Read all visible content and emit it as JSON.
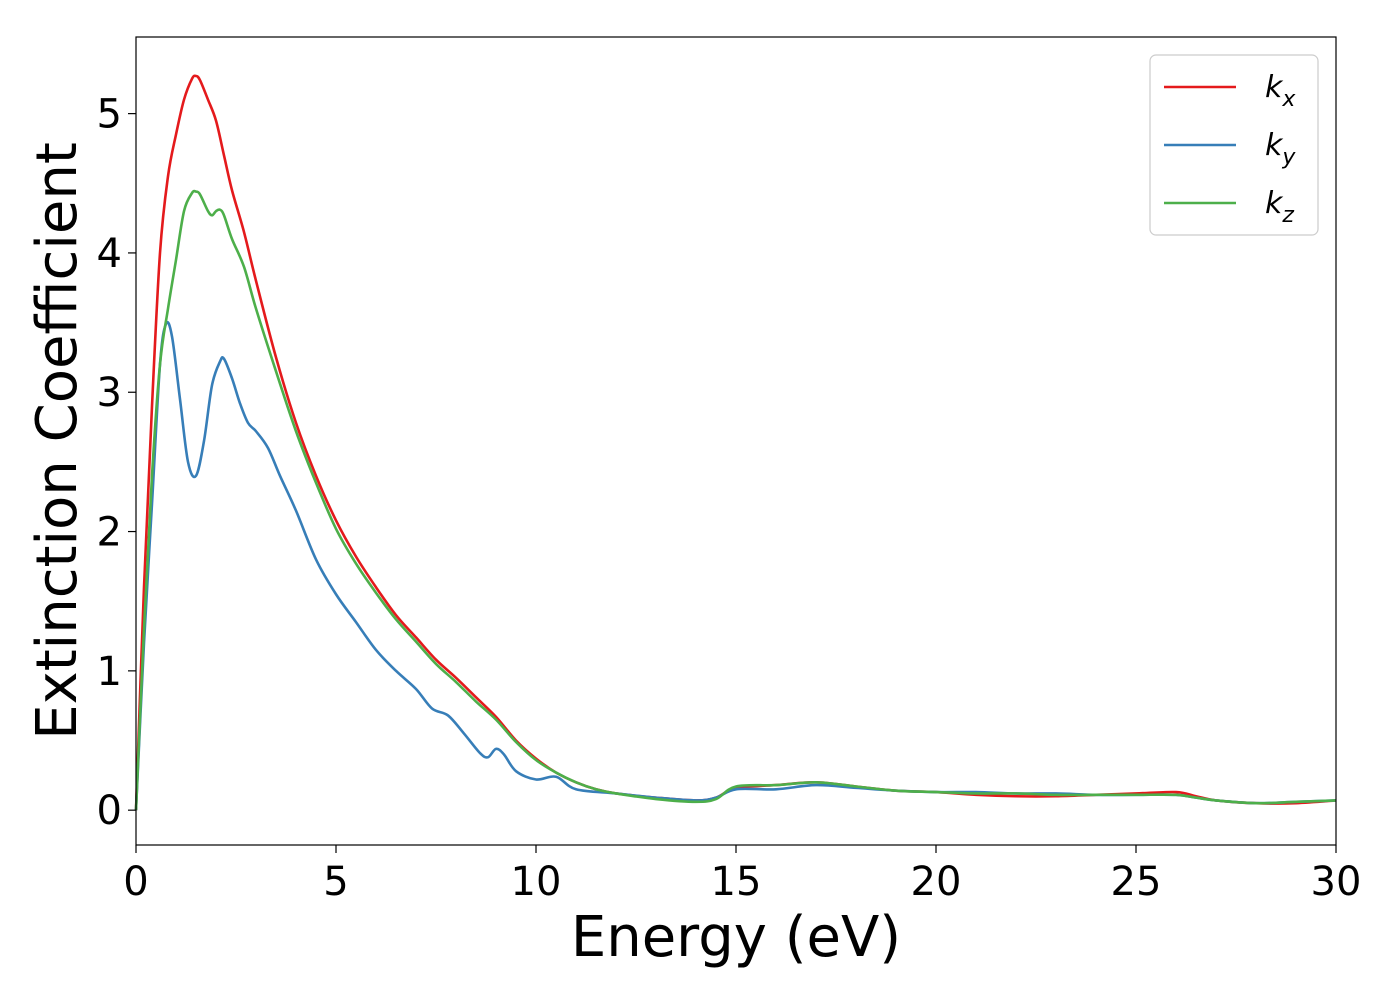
{
  "chart_data": {
    "type": "line",
    "title": "",
    "xlabel": "Energy (eV)",
    "ylabel": "Extinction Coefficient",
    "xlim": [
      0,
      30
    ],
    "ylim": [
      -0.25,
      5.55
    ],
    "xticks": [
      0,
      5,
      10,
      15,
      20,
      25,
      30
    ],
    "yticks": [
      0,
      1,
      2,
      3,
      4,
      5
    ],
    "grid": false,
    "legend_position": "top-right",
    "series": [
      {
        "name": "k_x",
        "label_base": "k",
        "label_sub": "x",
        "color": "#e41a1c",
        "points": [
          [
            0,
            0
          ],
          [
            0.2,
            1.6
          ],
          [
            0.4,
            2.9
          ],
          [
            0.6,
            4.0
          ],
          [
            0.8,
            4.55
          ],
          [
            1.0,
            4.85
          ],
          [
            1.2,
            5.1
          ],
          [
            1.4,
            5.25
          ],
          [
            1.5,
            5.27
          ],
          [
            1.6,
            5.24
          ],
          [
            1.8,
            5.1
          ],
          [
            2.0,
            4.95
          ],
          [
            2.2,
            4.7
          ],
          [
            2.4,
            4.45
          ],
          [
            2.7,
            4.15
          ],
          [
            3.0,
            3.8
          ],
          [
            3.5,
            3.25
          ],
          [
            4.0,
            2.78
          ],
          [
            4.5,
            2.4
          ],
          [
            5.0,
            2.08
          ],
          [
            5.5,
            1.82
          ],
          [
            6.0,
            1.6
          ],
          [
            6.5,
            1.4
          ],
          [
            7.0,
            1.24
          ],
          [
            7.5,
            1.08
          ],
          [
            8.0,
            0.95
          ],
          [
            8.5,
            0.81
          ],
          [
            9.0,
            0.67
          ],
          [
            9.5,
            0.5
          ],
          [
            10.0,
            0.37
          ],
          [
            10.5,
            0.27
          ],
          [
            11.0,
            0.2
          ],
          [
            11.5,
            0.15
          ],
          [
            12.0,
            0.12
          ],
          [
            13.0,
            0.09
          ],
          [
            14.0,
            0.07
          ],
          [
            14.5,
            0.09
          ],
          [
            15.0,
            0.16
          ],
          [
            16.0,
            0.18
          ],
          [
            17.0,
            0.2
          ],
          [
            18.0,
            0.17
          ],
          [
            19.0,
            0.14
          ],
          [
            20.0,
            0.13
          ],
          [
            21.0,
            0.11
          ],
          [
            22.0,
            0.1
          ],
          [
            23.0,
            0.1
          ],
          [
            24.0,
            0.11
          ],
          [
            25.0,
            0.12
          ],
          [
            26.0,
            0.13
          ],
          [
            26.5,
            0.1
          ],
          [
            27.0,
            0.07
          ],
          [
            28.0,
            0.05
          ],
          [
            29.0,
            0.05
          ],
          [
            30.0,
            0.07
          ]
        ]
      },
      {
        "name": "k_y",
        "label_base": "k",
        "label_sub": "y",
        "color": "#377eb8",
        "points": [
          [
            0,
            0
          ],
          [
            0.2,
            1.2
          ],
          [
            0.4,
            2.2
          ],
          [
            0.6,
            3.2
          ],
          [
            0.75,
            3.49
          ],
          [
            0.9,
            3.4
          ],
          [
            1.1,
            2.95
          ],
          [
            1.3,
            2.5
          ],
          [
            1.5,
            2.4
          ],
          [
            1.7,
            2.65
          ],
          [
            1.9,
            3.05
          ],
          [
            2.1,
            3.22
          ],
          [
            2.2,
            3.24
          ],
          [
            2.4,
            3.1
          ],
          [
            2.6,
            2.92
          ],
          [
            2.8,
            2.78
          ],
          [
            3.0,
            2.72
          ],
          [
            3.3,
            2.6
          ],
          [
            3.6,
            2.4
          ],
          [
            4.0,
            2.15
          ],
          [
            4.5,
            1.8
          ],
          [
            5.0,
            1.55
          ],
          [
            5.5,
            1.35
          ],
          [
            6.0,
            1.15
          ],
          [
            6.5,
            1.0
          ],
          [
            7.0,
            0.87
          ],
          [
            7.4,
            0.73
          ],
          [
            7.8,
            0.68
          ],
          [
            8.2,
            0.55
          ],
          [
            8.6,
            0.41
          ],
          [
            8.8,
            0.38
          ],
          [
            9.0,
            0.44
          ],
          [
            9.2,
            0.4
          ],
          [
            9.5,
            0.28
          ],
          [
            10.0,
            0.22
          ],
          [
            10.5,
            0.24
          ],
          [
            11.0,
            0.15
          ],
          [
            12.0,
            0.12
          ],
          [
            13.0,
            0.09
          ],
          [
            14.0,
            0.07
          ],
          [
            14.5,
            0.09
          ],
          [
            15.0,
            0.15
          ],
          [
            16.0,
            0.15
          ],
          [
            17.0,
            0.18
          ],
          [
            18.0,
            0.16
          ],
          [
            19.0,
            0.14
          ],
          [
            20.0,
            0.13
          ],
          [
            21.0,
            0.13
          ],
          [
            22.0,
            0.12
          ],
          [
            23.0,
            0.12
          ],
          [
            24.0,
            0.11
          ],
          [
            25.0,
            0.11
          ],
          [
            26.0,
            0.11
          ],
          [
            26.5,
            0.09
          ],
          [
            27.0,
            0.07
          ],
          [
            28.0,
            0.05
          ],
          [
            29.0,
            0.06
          ],
          [
            30.0,
            0.07
          ]
        ]
      },
      {
        "name": "k_z",
        "label_base": "k",
        "label_sub": "z",
        "color": "#4daf4a",
        "points": [
          [
            0,
            0
          ],
          [
            0.2,
            1.3
          ],
          [
            0.4,
            2.4
          ],
          [
            0.6,
            3.2
          ],
          [
            0.8,
            3.6
          ],
          [
            1.0,
            3.95
          ],
          [
            1.2,
            4.3
          ],
          [
            1.4,
            4.43
          ],
          [
            1.5,
            4.44
          ],
          [
            1.6,
            4.42
          ],
          [
            1.8,
            4.3
          ],
          [
            1.9,
            4.27
          ],
          [
            2.0,
            4.3
          ],
          [
            2.1,
            4.31
          ],
          [
            2.2,
            4.27
          ],
          [
            2.4,
            4.1
          ],
          [
            2.7,
            3.9
          ],
          [
            3.0,
            3.6
          ],
          [
            3.5,
            3.15
          ],
          [
            4.0,
            2.72
          ],
          [
            4.5,
            2.35
          ],
          [
            5.0,
            2.02
          ],
          [
            5.5,
            1.77
          ],
          [
            6.0,
            1.56
          ],
          [
            6.5,
            1.37
          ],
          [
            7.0,
            1.21
          ],
          [
            7.5,
            1.05
          ],
          [
            8.0,
            0.92
          ],
          [
            8.5,
            0.78
          ],
          [
            9.0,
            0.65
          ],
          [
            9.5,
            0.49
          ],
          [
            10.0,
            0.36
          ],
          [
            10.5,
            0.27
          ],
          [
            11.0,
            0.2
          ],
          [
            11.5,
            0.15
          ],
          [
            12.0,
            0.12
          ],
          [
            13.0,
            0.08
          ],
          [
            14.0,
            0.06
          ],
          [
            14.5,
            0.08
          ],
          [
            15.0,
            0.17
          ],
          [
            16.0,
            0.18
          ],
          [
            17.0,
            0.2
          ],
          [
            18.0,
            0.17
          ],
          [
            19.0,
            0.14
          ],
          [
            20.0,
            0.13
          ],
          [
            21.0,
            0.12
          ],
          [
            22.0,
            0.12
          ],
          [
            23.0,
            0.11
          ],
          [
            24.0,
            0.11
          ],
          [
            25.0,
            0.11
          ],
          [
            26.0,
            0.11
          ],
          [
            26.5,
            0.09
          ],
          [
            27.0,
            0.07
          ],
          [
            28.0,
            0.05
          ],
          [
            29.0,
            0.06
          ],
          [
            30.0,
            0.07
          ]
        ]
      }
    ]
  }
}
